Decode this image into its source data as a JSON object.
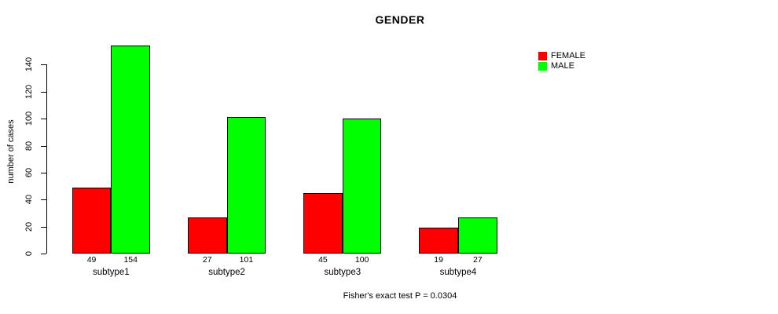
{
  "title": "GENDER",
  "y_axis": {
    "label": "number of cases",
    "ticks": [
      0,
      20,
      40,
      60,
      80,
      100,
      120,
      140
    ]
  },
  "legend": {
    "items": [
      {
        "label": "FEMALE",
        "color": "#ff0000"
      },
      {
        "label": "MALE",
        "color": "#00ff00"
      }
    ]
  },
  "footnote": "Fisher's exact test P = 0.0304",
  "chart_data": {
    "type": "bar",
    "title": "GENDER",
    "categories": [
      "subtype1",
      "subtype2",
      "subtype3",
      "subtype4"
    ],
    "series": [
      {
        "name": "FEMALE",
        "color": "#ff0000",
        "values": [
          49,
          27,
          45,
          19
        ]
      },
      {
        "name": "MALE",
        "color": "#00ff00",
        "values": [
          154,
          101,
          100,
          27
        ]
      }
    ],
    "xlabel": "",
    "ylabel": "number of cases",
    "ylim": [
      0,
      155
    ],
    "yticks": [
      0,
      20,
      40,
      60,
      80,
      100,
      120,
      140
    ],
    "bar_value_labels": true,
    "grid": false,
    "legend_position": "top-right",
    "annotation": "Fisher's exact test P = 0.0304"
  }
}
